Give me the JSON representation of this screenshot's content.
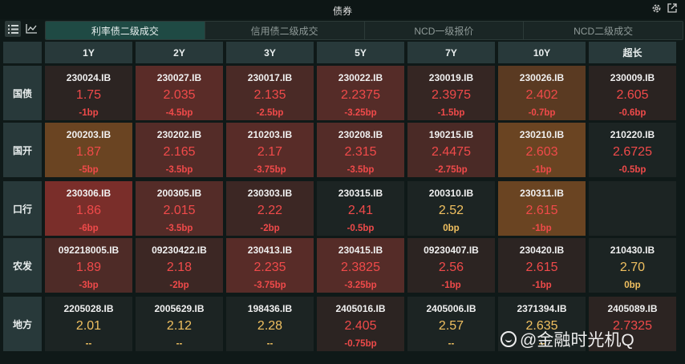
{
  "window": {
    "title": "债券",
    "settings_icon": "gear-icon",
    "popout_icon": "popout-icon"
  },
  "toolbar": {
    "view_buttons": [
      {
        "name": "list-view-icon",
        "active": true
      },
      {
        "name": "chart-view-icon",
        "active": false
      }
    ],
    "tabs": [
      {
        "label": "利率债二级成交",
        "active": true
      },
      {
        "label": "信用债二级成交",
        "active": false
      },
      {
        "label": "NCD一级报价",
        "active": false
      },
      {
        "label": "NCD二级成交",
        "active": false
      }
    ]
  },
  "colors": {
    "up": "#f04a4a",
    "flat": "#f0c060",
    "dash": "#f0c060",
    "bg_neutral": "#1c2423"
  },
  "columns": [
    "1Y",
    "2Y",
    "3Y",
    "5Y",
    "7Y",
    "10Y",
    "超长"
  ],
  "rows": [
    {
      "label": "国债",
      "cells": [
        {
          "code": "230024.IB",
          "value": "1.75",
          "change": "-1bp",
          "tone": "down",
          "heat": "#2c2422"
        },
        {
          "code": "230027.IB",
          "value": "2.035",
          "change": "-4.5bp",
          "tone": "down",
          "heat": "#5a2c28"
        },
        {
          "code": "230017.IB",
          "value": "2.135",
          "change": "-2.5bp",
          "tone": "down",
          "heat": "#4a2a26"
        },
        {
          "code": "230022.IB",
          "value": "2.2375",
          "change": "-3.25bp",
          "tone": "down",
          "heat": "#552c28"
        },
        {
          "code": "230019.IB",
          "value": "2.3975",
          "change": "-1.5bp",
          "tone": "down",
          "heat": "#352623"
        },
        {
          "code": "230026.IB",
          "value": "2.402",
          "change": "-0.7bp",
          "tone": "down",
          "heat": "#5a3a22"
        },
        {
          "code": "230009.IB",
          "value": "2.605",
          "change": "-0.6bp",
          "tone": "down",
          "heat": "#2a2321"
        }
      ]
    },
    {
      "label": "国开",
      "cells": [
        {
          "code": "200203.IB",
          "value": "1.87",
          "change": "-5bp",
          "tone": "down",
          "heat": "#6a4422"
        },
        {
          "code": "230202.IB",
          "value": "2.165",
          "change": "-3.5bp",
          "tone": "down",
          "heat": "#542c28"
        },
        {
          "code": "210203.IB",
          "value": "2.17",
          "change": "-3.75bp",
          "tone": "down",
          "heat": "#582c28"
        },
        {
          "code": "230208.IB",
          "value": "2.315",
          "change": "-3.5bp",
          "tone": "down",
          "heat": "#542c28"
        },
        {
          "code": "190215.IB",
          "value": "2.4475",
          "change": "-2.75bp",
          "tone": "down",
          "heat": "#4a2a26"
        },
        {
          "code": "230210.IB",
          "value": "2.603",
          "change": "-1bp",
          "tone": "down",
          "heat": "#6a4422"
        },
        {
          "code": "210220.IB",
          "value": "2.6725",
          "change": "-0.5bp",
          "tone": "down",
          "heat": "#1c2423"
        }
      ]
    },
    {
      "label": "口行",
      "cells": [
        {
          "code": "230306.IB",
          "value": "1.86",
          "change": "-6bp",
          "tone": "down",
          "heat": "#7a2e2a"
        },
        {
          "code": "200305.IB",
          "value": "2.015",
          "change": "-3.5bp",
          "tone": "down",
          "heat": "#542c28"
        },
        {
          "code": "230303.IB",
          "value": "2.22",
          "change": "-2bp",
          "tone": "down",
          "heat": "#3c2724"
        },
        {
          "code": "230315.IB",
          "value": "2.41",
          "change": "-0.5bp",
          "tone": "down",
          "heat": "#1c2423"
        },
        {
          "code": "200310.IB",
          "value": "2.52",
          "change": "0bp",
          "tone": "flat",
          "heat": "#1c2423"
        },
        {
          "code": "230311.IB",
          "value": "2.615",
          "change": "-1bp",
          "tone": "down",
          "heat": "#6a4422"
        },
        {
          "code": "",
          "value": "",
          "change": "",
          "tone": "empty",
          "heat": "#1c2423"
        }
      ]
    },
    {
      "label": "农发",
      "cells": [
        {
          "code": "092218005.IB",
          "value": "1.89",
          "change": "-3bp",
          "tone": "down",
          "heat": "#4e2b27"
        },
        {
          "code": "09230422.IB",
          "value": "2.18",
          "change": "-2bp",
          "tone": "down",
          "heat": "#3c2724"
        },
        {
          "code": "230413.IB",
          "value": "2.235",
          "change": "-3.75bp",
          "tone": "down",
          "heat": "#582c28"
        },
        {
          "code": "230415.IB",
          "value": "2.3825",
          "change": "-3.25bp",
          "tone": "down",
          "heat": "#552c28"
        },
        {
          "code": "09230407.IB",
          "value": "2.56",
          "change": "-1bp",
          "tone": "down",
          "heat": "#2c2422"
        },
        {
          "code": "230420.IB",
          "value": "2.615",
          "change": "-1bp",
          "tone": "down",
          "heat": "#2c2422"
        },
        {
          "code": "210430.IB",
          "value": "2.70",
          "change": "0bp",
          "tone": "flat",
          "heat": "#1c2423"
        }
      ]
    },
    {
      "label": "地方",
      "cells": [
        {
          "code": "2205028.IB",
          "value": "2.01",
          "change": "--",
          "tone": "flat",
          "heat": "#1c2423"
        },
        {
          "code": "2005629.IB",
          "value": "2.12",
          "change": "--",
          "tone": "flat",
          "heat": "#1c2423"
        },
        {
          "code": "198436.IB",
          "value": "2.28",
          "change": "--",
          "tone": "flat",
          "heat": "#1c2423"
        },
        {
          "code": "2405016.IB",
          "value": "2.405",
          "change": "-0.75bp",
          "tone": "down",
          "heat": "#2c2422"
        },
        {
          "code": "2405006.IB",
          "value": "2.57",
          "change": "--",
          "tone": "flat",
          "heat": "#1c2423"
        },
        {
          "code": "2371394.IB",
          "value": "2.635",
          "change": "--",
          "tone": "flat",
          "heat": "#1c2423"
        },
        {
          "code": "2405089.IB",
          "value": "2.7325",
          "change": "",
          "tone": "down",
          "heat": "#2c2422"
        }
      ]
    }
  ],
  "watermark": {
    "text": "@金融时光机Q",
    "icon": "watermark-logo-icon"
  }
}
